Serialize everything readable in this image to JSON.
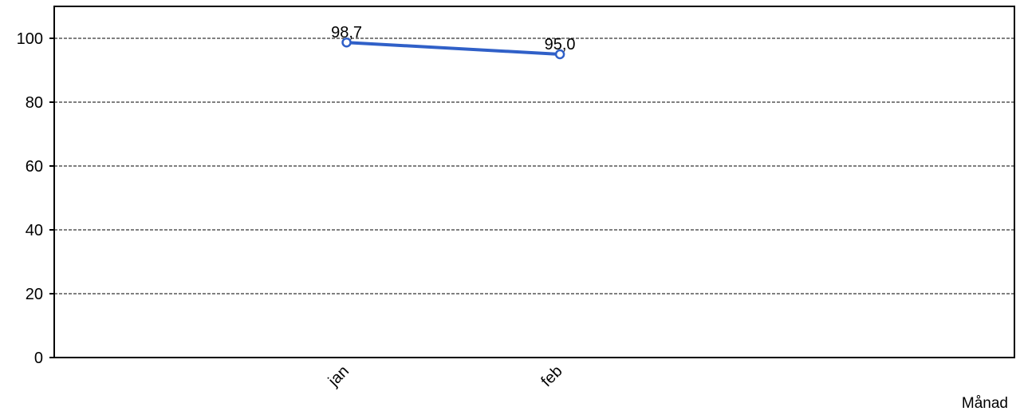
{
  "chart_data": {
    "type": "line",
    "categories": [
      "jan",
      "feb"
    ],
    "series": [
      {
        "values": [
          98.7,
          95.0
        ],
        "labels": [
          "98,7",
          "95,0"
        ],
        "color": "#3060c8"
      }
    ],
    "xlabel": "Månad",
    "ylabel": "",
    "ylim": [
      0,
      110
    ],
    "yticks": [
      0,
      20,
      40,
      60,
      80,
      100
    ],
    "grid": true,
    "grid_style": "dashed",
    "legend": false
  }
}
